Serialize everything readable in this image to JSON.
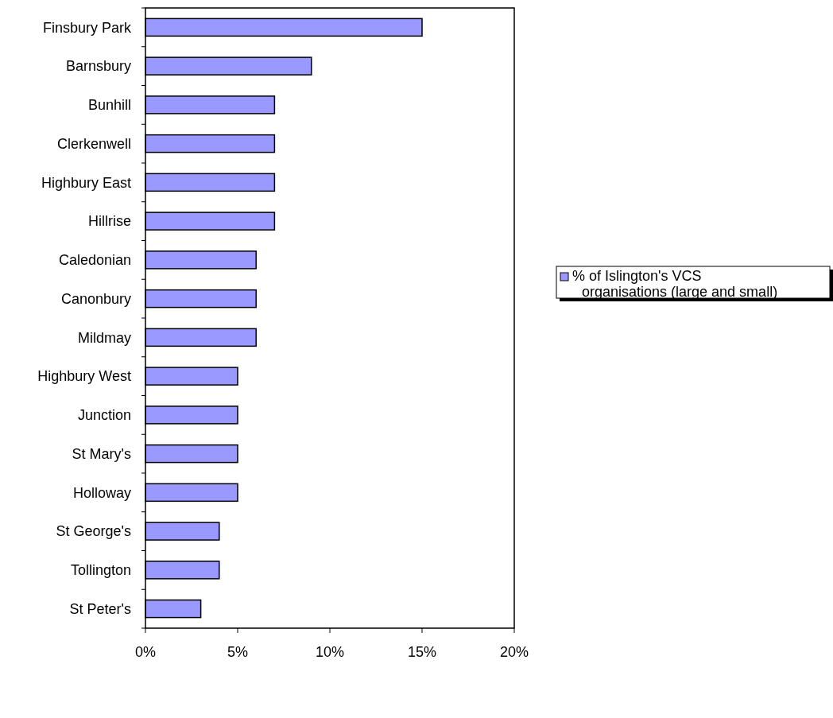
{
  "chart_data": {
    "type": "bar",
    "orientation": "horizontal",
    "categories": [
      "Finsbury Park",
      "Barnsbury",
      "Bunhill",
      "Clerkenwell",
      "Highbury East",
      "Hillrise",
      "Caledonian",
      "Canonbury",
      "Mildmay",
      "Highbury West",
      "Junction",
      "St Mary's",
      "Holloway",
      "St George's",
      "Tollington",
      "St Peter's"
    ],
    "series": [
      {
        "name": "% of Islington's VCS organisations (large and small)",
        "color": "#9999ff",
        "values": [
          15,
          9,
          7,
          7,
          7,
          7,
          6,
          6,
          6,
          5,
          5,
          5,
          5,
          4,
          4,
          3
        ]
      }
    ],
    "xlim": [
      0,
      20
    ],
    "xticks": [
      {
        "value": 0,
        "label": "0%"
      },
      {
        "value": 5,
        "label": "5%"
      },
      {
        "value": 10,
        "label": "10%"
      },
      {
        "value": 15,
        "label": "15%"
      },
      {
        "value": 20,
        "label": "20%"
      }
    ],
    "grid": false,
    "legend": "right"
  }
}
